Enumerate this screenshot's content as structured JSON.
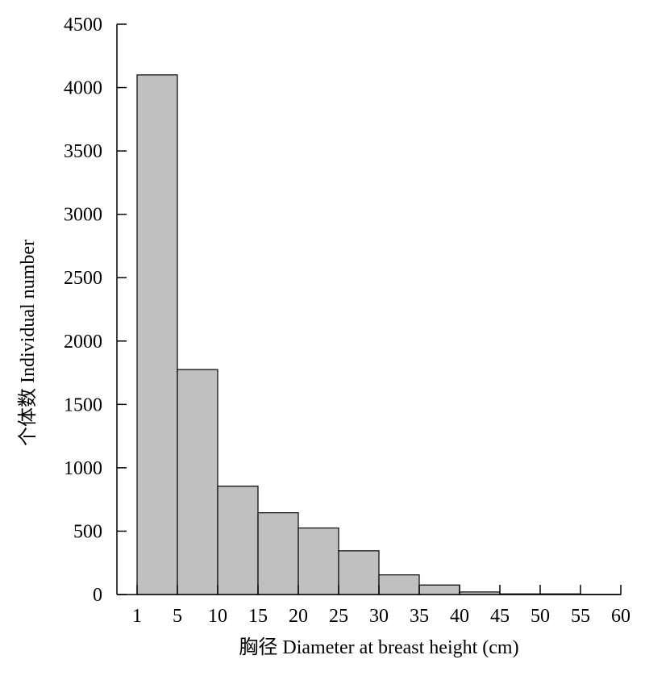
{
  "chart_data": {
    "type": "bar",
    "xlabel": "胸径 Diameter at breast height (cm)",
    "ylabel": "个体数 Individual number",
    "bin_edges": [
      1,
      5,
      10,
      15,
      20,
      25,
      30,
      35,
      40,
      45,
      50,
      55,
      60
    ],
    "x_ticks": [
      "1",
      "5",
      "10",
      "15",
      "20",
      "25",
      "30",
      "35",
      "40",
      "45",
      "50",
      "55",
      "60"
    ],
    "values": [
      4100,
      1775,
      855,
      645,
      525,
      345,
      155,
      75,
      20,
      5,
      5,
      2
    ],
    "ylim": [
      0,
      4500
    ],
    "y_ticks": [
      "0",
      "500",
      "1000",
      "1500",
      "2000",
      "2500",
      "3000",
      "3500",
      "4000",
      "4500"
    ],
    "bar_color": "#c0c0c0",
    "edge_color": "#000000",
    "grid": false
  }
}
